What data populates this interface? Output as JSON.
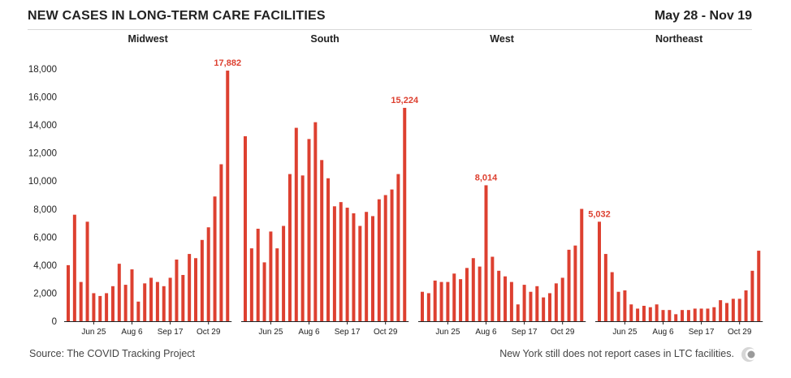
{
  "header": {
    "title": "NEW CASES IN LONG-TERM CARE FACILITIES",
    "date_range": "May 28 - Nov 19"
  },
  "footer": {
    "source": "Source: The COVID Tracking Project",
    "note": "New York still does not report cases in LTC facilities."
  },
  "colors": {
    "bar": "#dd4030",
    "axis": "#222222",
    "grid": "#e6e6e6",
    "text": "#222222"
  },
  "chart_data": {
    "type": "bar",
    "ylim": [
      0,
      18000
    ],
    "yticks": [
      0,
      2000,
      4000,
      6000,
      8000,
      10000,
      12000,
      14000,
      16000,
      18000
    ],
    "ytick_labels": [
      "0",
      "2,000",
      "4,000",
      "6,000",
      "8,000",
      "10,000",
      "12,000",
      "14,000",
      "16,000",
      "18,000"
    ],
    "grid": false,
    "panels": [
      {
        "name": "Midwest",
        "values": [
          4000,
          7600,
          2800,
          7100,
          2000,
          1800,
          2000,
          2500,
          4100,
          2600,
          3700,
          1400,
          2700,
          3100,
          2800,
          2500,
          3100,
          4400,
          3300,
          4800,
          4500,
          5800,
          6700,
          8900,
          11200,
          17882
        ],
        "xticks": [
          {
            "i": 4,
            "label": "Jun 25"
          },
          {
            "i": 10,
            "label": "Aug 6"
          },
          {
            "i": 16,
            "label": "Sep 17"
          },
          {
            "i": 22,
            "label": "Oct 29"
          }
        ],
        "peak_label": "17,882"
      },
      {
        "name": "South",
        "values": [
          13200,
          5200,
          6600,
          4200,
          6400,
          5200,
          6800,
          10500,
          13800,
          10400,
          13000,
          14200,
          11500,
          10200,
          8200,
          8500,
          8100,
          7700,
          6800,
          7800,
          7500,
          8700,
          9000,
          9400,
          10500,
          15224
        ],
        "xticks": [
          {
            "i": 4,
            "label": "Jun 25"
          },
          {
            "i": 10,
            "label": "Aug 6"
          },
          {
            "i": 16,
            "label": "Sep 17"
          },
          {
            "i": 22,
            "label": "Oct 29"
          }
        ],
        "peak_label": "15,224"
      },
      {
        "name": "West",
        "values": [
          2100,
          2000,
          2900,
          2800,
          2800,
          3400,
          3000,
          3800,
          4500,
          3900,
          9700,
          4600,
          3600,
          3200,
          2800,
          1200,
          2600,
          2100,
          2500,
          1700,
          2000,
          2700,
          3100,
          5100,
          5400,
          8014
        ],
        "xticks": [
          {
            "i": 4,
            "label": "Jun 25"
          },
          {
            "i": 10,
            "label": "Aug 6"
          },
          {
            "i": 16,
            "label": "Sep 17"
          },
          {
            "i": 22,
            "label": "Oct 29"
          }
        ],
        "peak_label": "8,014"
      },
      {
        "name": "Northeast",
        "values": [
          7100,
          4800,
          3500,
          2100,
          2200,
          1200,
          900,
          1100,
          1000,
          1200,
          800,
          800,
          500,
          800,
          800,
          900,
          900,
          900,
          1000,
          1500,
          1300,
          1600,
          1600,
          2200,
          3600,
          5032
        ],
        "xticks": [
          {
            "i": 4,
            "label": "Jun 25"
          },
          {
            "i": 10,
            "label": "Aug 6"
          },
          {
            "i": 16,
            "label": "Sep 17"
          },
          {
            "i": 22,
            "label": "Oct 29"
          }
        ],
        "peak_label": "5,032"
      }
    ]
  }
}
